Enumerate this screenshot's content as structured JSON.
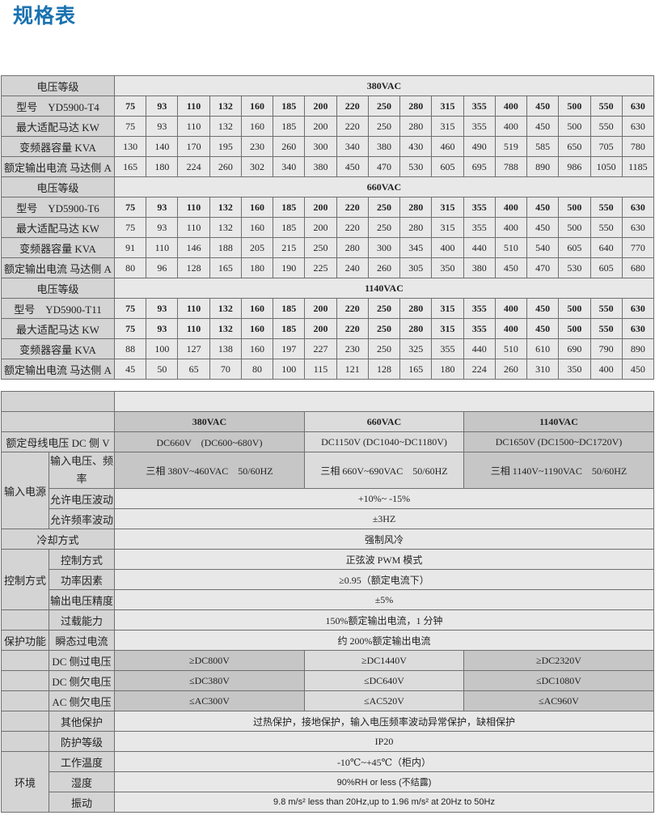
{
  "title": "规格表",
  "groups": [
    {
      "voltage_label": "电压等级",
      "voltage": "380VAC",
      "model": "型号　YD5900-T4",
      "rows": [
        {
          "label": "最大适配马达 KW",
          "bold": false,
          "values": [
            "75",
            "93",
            "110",
            "132",
            "160",
            "185",
            "200",
            "220",
            "250",
            "280",
            "315",
            "355",
            "400",
            "450",
            "500",
            "550",
            "630"
          ]
        },
        {
          "label": "变频器容量 KVA",
          "bold": false,
          "values": [
            "130",
            "140",
            "170",
            "195",
            "230",
            "260",
            "300",
            "340",
            "380",
            "430",
            "460",
            "490",
            "519",
            "585",
            "650",
            "705",
            "780"
          ]
        },
        {
          "label": "额定输出电流 马达侧 A",
          "bold": false,
          "values": [
            "165",
            "180",
            "224",
            "260",
            "302",
            "340",
            "380",
            "450",
            "470",
            "530",
            "605",
            "695",
            "788",
            "890",
            "986",
            "1050",
            "1185"
          ]
        }
      ],
      "models": [
        "75",
        "93",
        "110",
        "132",
        "160",
        "185",
        "200",
        "220",
        "250",
        "280",
        "315",
        "355",
        "400",
        "450",
        "500",
        "550",
        "630"
      ]
    },
    {
      "voltage_label": "电压等级",
      "voltage": "660VAC",
      "model": "型号　YD5900-T6",
      "rows": [
        {
          "label": "最大适配马达 KW",
          "bold": false,
          "values": [
            "75",
            "93",
            "110",
            "132",
            "160",
            "185",
            "200",
            "220",
            "250",
            "280",
            "315",
            "355",
            "400",
            "450",
            "500",
            "550",
            "630"
          ]
        },
        {
          "label": "变频器容量 KVA",
          "bold": false,
          "values": [
            "91",
            "110",
            "146",
            "188",
            "205",
            "215",
            "250",
            "280",
            "300",
            "345",
            "400",
            "440",
            "510",
            "540",
            "605",
            "640",
            "770"
          ]
        },
        {
          "label": "额定输出电流 马达侧 A",
          "bold": false,
          "values": [
            "80",
            "96",
            "128",
            "165",
            "180",
            "190",
            "225",
            "240",
            "260",
            "305",
            "350",
            "380",
            "450",
            "470",
            "530",
            "605",
            "680"
          ]
        }
      ],
      "models": [
        "75",
        "93",
        "110",
        "132",
        "160",
        "185",
        "200",
        "220",
        "250",
        "280",
        "315",
        "355",
        "400",
        "450",
        "500",
        "550",
        "630"
      ]
    },
    {
      "voltage_label": "电压等级",
      "voltage": "1140VAC",
      "model": "型号　YD5900-T11",
      "rows": [
        {
          "label": "最大适配马达 KW",
          "bold": true,
          "values": [
            "75",
            "93",
            "110",
            "132",
            "160",
            "185",
            "200",
            "220",
            "250",
            "280",
            "315",
            "355",
            "400",
            "450",
            "500",
            "550",
            "630"
          ]
        },
        {
          "label": "变频器容量 KVA",
          "bold": false,
          "values": [
            "88",
            "100",
            "127",
            "138",
            "160",
            "197",
            "227",
            "230",
            "250",
            "325",
            "355",
            "440",
            "510",
            "610",
            "690",
            "790",
            "890"
          ]
        },
        {
          "label": "额定输出电流 马达侧 A",
          "bold": false,
          "values": [
            "45",
            "50",
            "65",
            "70",
            "80",
            "100",
            "115",
            "121",
            "128",
            "165",
            "180",
            "224",
            "260",
            "310",
            "350",
            "400",
            "450"
          ]
        }
      ],
      "models": [
        "75",
        "93",
        "110",
        "132",
        "160",
        "185",
        "200",
        "220",
        "250",
        "280",
        "315",
        "355",
        "400",
        "450",
        "500",
        "550",
        "630"
      ]
    }
  ],
  "specs": {
    "headers": [
      "380VAC",
      "660VAC",
      "1140VAC"
    ],
    "bus_voltage": {
      "label": "额定母线电压 DC 侧 V",
      "values": [
        "DC660V　(DC600~680V)",
        "DC1150V (DC1040~DC1180V)",
        "DC1650V (DC1500~DC1720V)"
      ]
    },
    "input_power": {
      "label": "输入电源",
      "voltage_freq": {
        "label": "输入电压、频率",
        "values": [
          "三相 380V~460VAC　50/60HZ",
          "三相 660V~690VAC　50/60HZ",
          "三相 1140V~1190VAC　50/60HZ"
        ]
      },
      "voltage_fluct": {
        "label": "允许电压波动",
        "value": "+10%~ -15%"
      },
      "freq_fluct": {
        "label": "允许频率波动",
        "value": "±3HZ"
      }
    },
    "cooling": {
      "label": "冷却方式",
      "value": "强制风冷"
    },
    "control": {
      "label": "控制方式",
      "mode": {
        "label": "控制方式",
        "value": "正弦波 PWM 模式"
      },
      "pf": {
        "label": "功率因素",
        "value": "≥0.95（额定电流下）"
      },
      "accuracy": {
        "label": "输出电压精度",
        "value": "±5%"
      }
    },
    "protection": {
      "label": "保护功能",
      "overload": {
        "label": "过载能力",
        "value": "150%额定输出电流，1 分钟"
      },
      "transient": {
        "label": "瞬态过电流",
        "value": "约 200%额定输出电流"
      },
      "dc_over": {
        "label": "DC 侧过电压",
        "values": [
          "≥DC800V",
          "≥DC1440V",
          "≥DC2320V"
        ]
      },
      "dc_under": {
        "label": "DC 侧欠电压",
        "values": [
          "≤DC380V",
          "≤DC640V",
          "≤DC1080V"
        ]
      },
      "ac_under": {
        "label": "AC 侧欠电压",
        "values": [
          "≤AC300V",
          "≤AC520V",
          "≤AC960V"
        ]
      },
      "other": {
        "label": "其他保护",
        "value": "过热保护，接地保护，输入电压频率波动异常保护，缺相保护"
      },
      "ip": {
        "label": "防护等级",
        "value": "IP20"
      }
    },
    "environment": {
      "label": "环境",
      "temp": {
        "label": "工作温度",
        "value": "-10℃~+45℃（柜内）"
      },
      "humidity": {
        "label": "湿度",
        "value": "90%RH or less (不结露)"
      },
      "vibration": {
        "label": "振动",
        "value": "9.8 m/s² less than 20Hz,up to 1.96 m/s² at 20Hz to 50Hz"
      }
    }
  }
}
